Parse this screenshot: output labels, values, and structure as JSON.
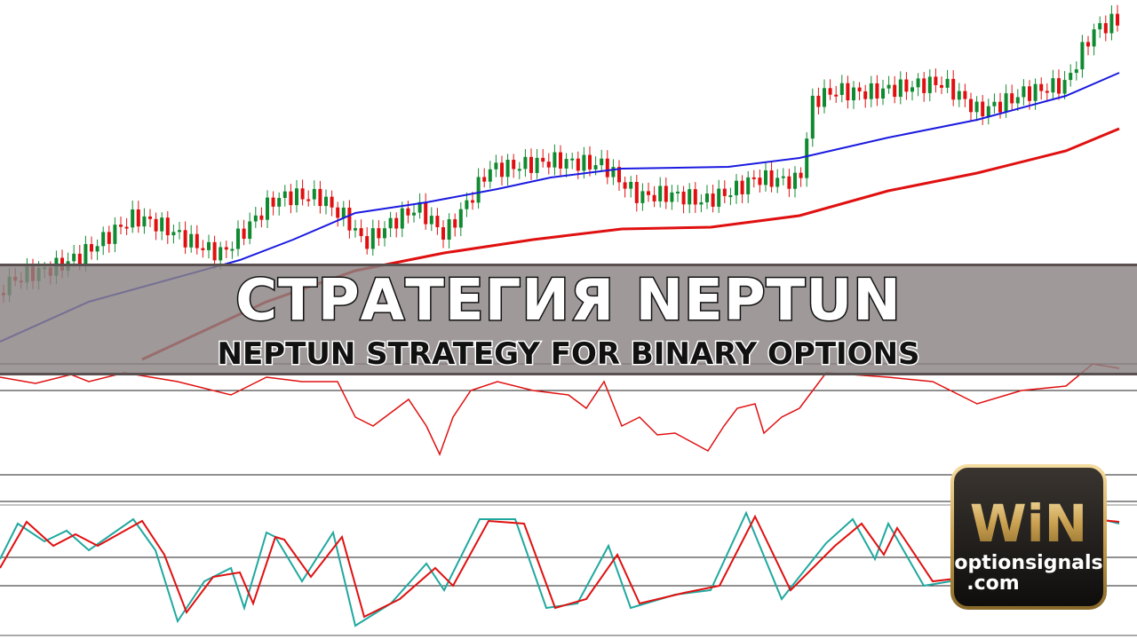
{
  "banner": {
    "title": "СТРАТЕГИЯ NEPTUN",
    "subtitle": "NEPTUN STRATEGY FOR BINARY OPTIONS"
  },
  "logo": {
    "mark": "WiN",
    "site": "optionsignals",
    "domain": ".com"
  }
}
